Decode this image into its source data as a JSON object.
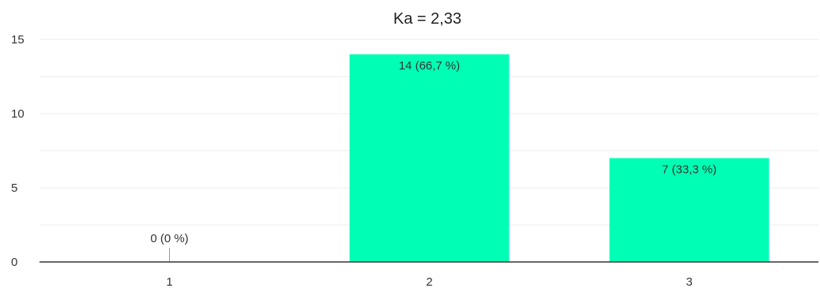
{
  "chart_data": {
    "type": "bar",
    "title": "Ka = 2,33",
    "categories": [
      "1",
      "2",
      "3"
    ],
    "values": [
      0,
      14,
      7
    ],
    "data_labels": [
      "0 (0 %)",
      "14 (66,7 %)",
      "7 (33,3 %)"
    ],
    "xlabel": "",
    "ylabel": "",
    "ylim": [
      0,
      15
    ],
    "yticks": [
      0,
      5,
      10,
      15
    ],
    "ytick_labels": [
      "0",
      "5",
      "10",
      "15"
    ],
    "grid": true,
    "legend": "none",
    "colors": {
      "bar": "#00ffb4",
      "grid": "#ececec",
      "axis": "#333333",
      "zero_marker": "#999999"
    }
  }
}
